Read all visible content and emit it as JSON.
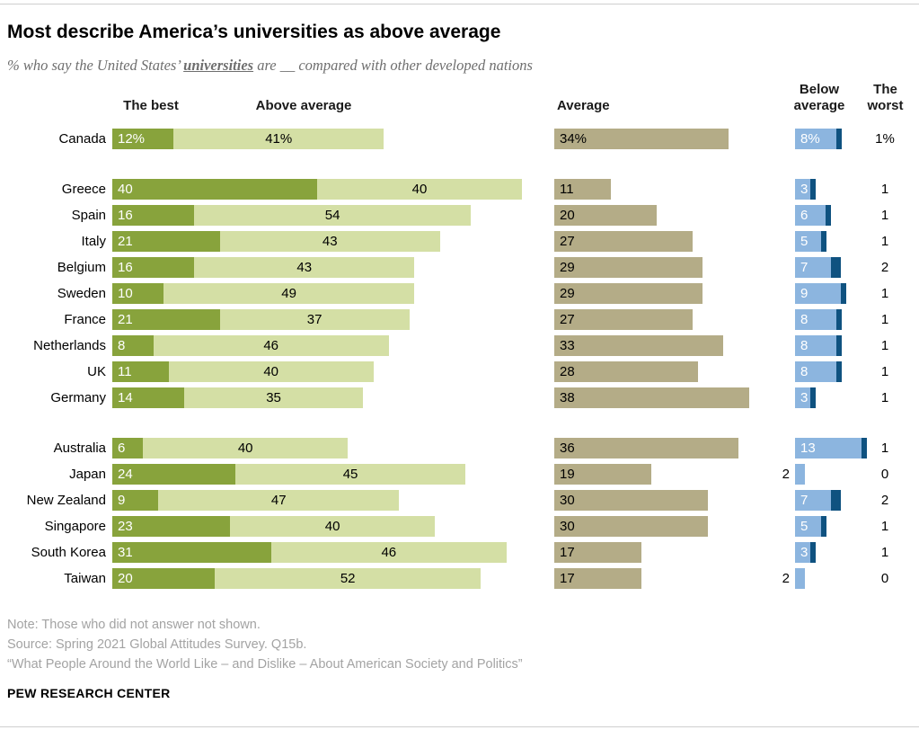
{
  "meta": {
    "title": "Most describe America’s universities as above average",
    "subtitle": {
      "prefix": "% who say the United States’ ",
      "emph": "universities",
      "suffix": " are __ compared with other developed nations"
    },
    "note": "Note: Those who did not answer not shown.",
    "source": "Source: Spring 2021 Global Attitudes Survey. Q15b.",
    "quote": "“What People Around the World Like – and Dislike – About American Society and Politics”",
    "brand": "PEW RESEARCH CENTER"
  },
  "headers": {
    "best": "The best",
    "above": "Above average",
    "average": "Average",
    "below": "Below\naverage",
    "worst": "The\nworst"
  },
  "colors": {
    "best": "#88a33c",
    "above": "#d4dfa5",
    "average": "#b4ac87",
    "below": "#8cb5df",
    "worst": "#0f5280"
  },
  "chart_data": {
    "type": "bar",
    "variant": "horizontal-stacked",
    "unit": "%",
    "title": "Most describe America’s universities as above average",
    "categories": [
      "Canada",
      "Greece",
      "Spain",
      "Italy",
      "Belgium",
      "Sweden",
      "France",
      "Netherlands",
      "UK",
      "Germany",
      "Australia",
      "Japan",
      "New Zealand",
      "Singapore",
      "South Korea",
      "Taiwan"
    ],
    "group_breaks_before": [
      1,
      10
    ],
    "percent_sign_rows": [
      0
    ],
    "series": [
      {
        "name": "The best",
        "color": "#88a33c",
        "values": [
          12,
          40,
          16,
          21,
          16,
          10,
          21,
          8,
          11,
          14,
          6,
          24,
          9,
          23,
          31,
          20
        ]
      },
      {
        "name": "Above average",
        "color": "#d4dfa5",
        "values": [
          41,
          40,
          54,
          43,
          43,
          49,
          37,
          46,
          40,
          35,
          40,
          45,
          47,
          40,
          46,
          52
        ]
      },
      {
        "name": "Average",
        "color": "#b4ac87",
        "values": [
          34,
          11,
          20,
          27,
          29,
          29,
          27,
          33,
          28,
          38,
          36,
          19,
          30,
          30,
          17,
          17
        ]
      },
      {
        "name": "Below average",
        "color": "#8cb5df",
        "values": [
          8,
          3,
          6,
          5,
          7,
          9,
          8,
          8,
          8,
          3,
          13,
          2,
          7,
          5,
          3,
          2
        ]
      },
      {
        "name": "The worst",
        "color": "#0f5280",
        "values": [
          1,
          1,
          1,
          1,
          2,
          1,
          1,
          1,
          1,
          1,
          1,
          0,
          2,
          1,
          1,
          0
        ]
      }
    ]
  }
}
